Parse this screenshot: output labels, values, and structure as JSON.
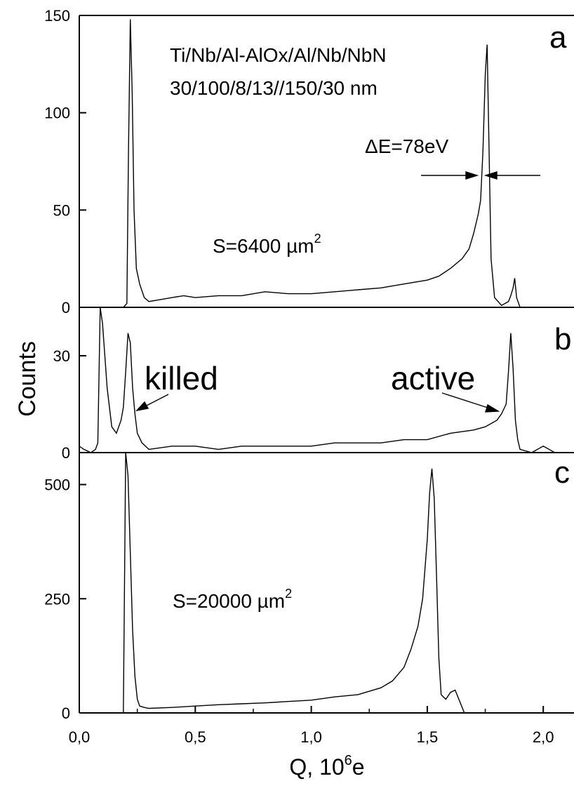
{
  "figure": {
    "ylabel": "Counts",
    "xlabel_main": "Q, 10",
    "xlabel_sup": "6",
    "xlabel_tail": "e",
    "x_ticks": [
      "0,0",
      "0,5",
      "1,0",
      "1,5",
      "2,0"
    ],
    "x_tick_values": [
      0,
      0.5,
      1.0,
      1.5,
      2.0
    ],
    "xlim": [
      0,
      2.2
    ]
  },
  "panels": [
    {
      "letter": "a",
      "ylim": [
        0,
        150
      ],
      "y_ticks": [
        "0",
        "50",
        "100",
        "150"
      ],
      "y_tick_values": [
        0,
        50,
        100,
        150
      ],
      "annotations": {
        "stack": "Ti/Nb/Al-AlOx/Al/Nb/NbN",
        "thickness": "30/100/8/13//150/30 nm",
        "resolution": "ΔE=78eV",
        "area_main": "S=6400 µm",
        "area_sup": "2"
      }
    },
    {
      "letter": "b",
      "ylim": [
        0,
        45
      ],
      "y_ticks": [
        "0",
        "30"
      ],
      "y_tick_values": [
        0,
        30
      ],
      "annotations": {
        "killed": "killed",
        "active": "active"
      }
    },
    {
      "letter": "c",
      "ylim": [
        0,
        570
      ],
      "y_ticks": [
        "0",
        "250",
        "500"
      ],
      "y_tick_values": [
        0,
        250,
        500
      ],
      "annotations": {
        "area_main": "S=20000 µm",
        "area_sup": "2"
      }
    }
  ],
  "chart_data": [
    {
      "type": "line",
      "panel": "a",
      "xlabel": "Q, 10^6 e",
      "ylabel": "Counts",
      "ylim": [
        0,
        150
      ],
      "xlim": [
        0,
        2.2
      ],
      "series": [
        {
          "x": [
            0.19,
            0.205,
            0.212,
            0.22,
            0.228,
            0.236,
            0.246,
            0.26,
            0.28,
            0.3,
            0.35,
            0.4,
            0.45,
            0.5,
            0.6,
            0.7,
            0.8,
            0.9,
            1.0,
            1.1,
            1.2,
            1.3,
            1.4,
            1.5,
            1.55,
            1.6,
            1.65,
            1.68,
            1.7,
            1.72,
            1.73,
            1.74,
            1.75,
            1.758,
            1.765,
            1.775,
            1.79,
            1.82,
            1.85,
            1.86,
            1.87,
            1.877,
            1.885,
            1.9
          ],
          "y": [
            0,
            2,
            80,
            148,
            110,
            50,
            20,
            12,
            5,
            3,
            4,
            5,
            6,
            5,
            6,
            6,
            8,
            7,
            7,
            8,
            9,
            10,
            12,
            14,
            16,
            20,
            25,
            30,
            38,
            48,
            55,
            80,
            120,
            135,
            90,
            25,
            5,
            1,
            3,
            6,
            10,
            15,
            5,
            0
          ]
        }
      ]
    },
    {
      "type": "line",
      "panel": "b",
      "xlabel": "Q, 10^6 e",
      "ylabel": "Counts",
      "ylim": [
        0,
        45
      ],
      "xlim": [
        0,
        2.2
      ],
      "series": [
        {
          "x": [
            0.0,
            0.02,
            0.05,
            0.07,
            0.08,
            0.09,
            0.1,
            0.12,
            0.14,
            0.16,
            0.18,
            0.19,
            0.2,
            0.21,
            0.22,
            0.23,
            0.24,
            0.25,
            0.27,
            0.3,
            0.4,
            0.5,
            0.6,
            0.7,
            0.8,
            0.9,
            1.0,
            1.1,
            1.2,
            1.3,
            1.4,
            1.5,
            1.6,
            1.7,
            1.75,
            1.8,
            1.82,
            1.84,
            1.85,
            1.86,
            1.87,
            1.88,
            1.89,
            1.9,
            1.95,
            2.0,
            2.05
          ],
          "y": [
            2,
            1,
            0,
            1,
            3,
            45,
            40,
            20,
            8,
            6,
            10,
            14,
            25,
            37,
            34,
            20,
            12,
            6,
            3,
            1,
            2,
            2,
            1,
            2,
            2,
            2,
            2,
            3,
            3,
            3,
            4,
            4,
            6,
            7,
            8,
            10,
            12,
            15,
            25,
            37,
            26,
            10,
            4,
            1,
            0,
            2,
            0
          ]
        }
      ]
    },
    {
      "type": "line",
      "panel": "c",
      "xlabel": "Q, 10^6 e",
      "ylabel": "Counts",
      "ylim": [
        0,
        570
      ],
      "xlim": [
        0,
        2.2
      ],
      "series": [
        {
          "x": [
            0.18,
            0.19,
            0.2,
            0.21,
            0.22,
            0.23,
            0.24,
            0.25,
            0.26,
            0.28,
            0.3,
            0.4,
            0.5,
            0.6,
            0.7,
            0.8,
            0.9,
            1.0,
            1.1,
            1.2,
            1.3,
            1.35,
            1.4,
            1.43,
            1.46,
            1.48,
            1.5,
            1.51,
            1.52,
            1.53,
            1.54,
            1.55,
            1.56,
            1.58,
            1.6,
            1.62,
            1.64,
            1.66
          ],
          "y": [
            0,
            0,
            570,
            520,
            350,
            180,
            80,
            30,
            15,
            12,
            10,
            12,
            15,
            18,
            20,
            22,
            25,
            28,
            35,
            40,
            55,
            70,
            100,
            140,
            190,
            250,
            380,
            480,
            535,
            470,
            300,
            120,
            40,
            30,
            45,
            50,
            25,
            0
          ]
        }
      ]
    }
  ]
}
